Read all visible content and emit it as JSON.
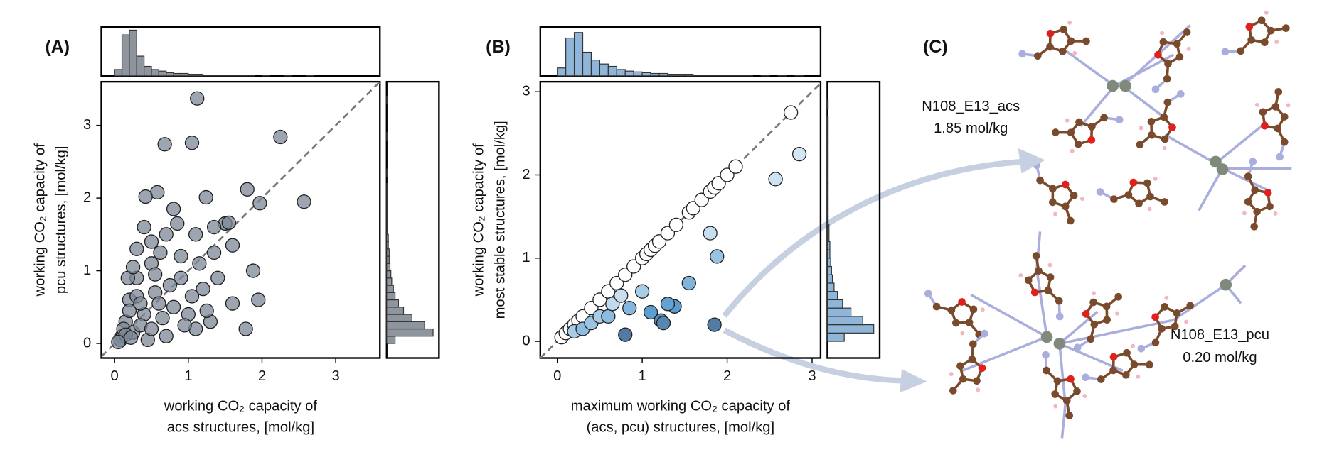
{
  "chart_data": [
    {
      "type": "scatter",
      "panel": "(A)",
      "xlabel": [
        "working CO₂ capacity of",
        "acs structures, [mol/kg]"
      ],
      "ylabel": [
        "working CO₂ capacity of",
        "pcu structures, [mol/kg]"
      ],
      "x": [
        1.12,
        2.25,
        0.68,
        1.05,
        2.57,
        1.8,
        1.97,
        1.24,
        0.58,
        0.42,
        0.8,
        1.5,
        1.55,
        1.35,
        1.6,
        1.88,
        1.78,
        1.3,
        1.05,
        1.2,
        0.9,
        0.7,
        0.5,
        0.3,
        0.3,
        0.2,
        0.15,
        0.1,
        0.08,
        0.12,
        0.25,
        0.4,
        0.55,
        0.65,
        0.8,
        1.0,
        1.1,
        0.7,
        0.45,
        0.35,
        0.2,
        0.18,
        0.5,
        0.9,
        1.15,
        1.4,
        1.6,
        0.6,
        0.95,
        1.25,
        0.3,
        0.5,
        0.15,
        0.22,
        0.75,
        0.85,
        0.4,
        0.62,
        1.35,
        1.1,
        1.95,
        0.25,
        0.55,
        0.05,
        0.35
      ],
      "y": [
        3.37,
        2.84,
        2.74,
        2.76,
        1.95,
        2.12,
        1.93,
        2.01,
        2.08,
        2.02,
        1.85,
        1.65,
        1.66,
        1.6,
        1.35,
        1.0,
        0.2,
        0.3,
        0.65,
        0.75,
        1.2,
        1.5,
        1.1,
        0.9,
        1.3,
        0.6,
        0.3,
        0.1,
        0.05,
        0.2,
        0.15,
        0.4,
        0.7,
        0.35,
        0.5,
        0.4,
        0.2,
        0.1,
        0.05,
        0.25,
        0.45,
        0.9,
        1.4,
        0.9,
        1.1,
        0.9,
        0.55,
        0.55,
        0.25,
        0.45,
        0.65,
        0.2,
        0.12,
        0.08,
        0.8,
        1.65,
        1.6,
        1.25,
        1.25,
        1.5,
        0.6,
        1.05,
        0.95,
        0.02,
        0.55
      ],
      "color": "#7c8896",
      "edgecolor": "#222222",
      "xlim": [
        -0.18,
        3.6
      ],
      "ylim": [
        -0.2,
        3.6
      ],
      "xticks": [
        0,
        1,
        2,
        3
      ],
      "yticks": [
        0,
        1,
        2,
        3
      ],
      "diagonal": true
    },
    {
      "type": "histogram",
      "orientation": "vertical",
      "color": "#8f959c",
      "bins": [
        0,
        0.1,
        0.2,
        0.3,
        0.4,
        0.5,
        0.6,
        0.7,
        0.8,
        0.9,
        1.0,
        1.1,
        1.2,
        1.3,
        1.4,
        1.5,
        1.6,
        1.7,
        1.8,
        1.9,
        2.0,
        2.1,
        2.2,
        2.3,
        2.4,
        2.5,
        2.6,
        2.7,
        2.8,
        2.9,
        3.0,
        3.1,
        3.2,
        3.3,
        3.4,
        3.5,
        3.6
      ],
      "counts": [
        8,
        52,
        58,
        25,
        12,
        8,
        6,
        4,
        3,
        3,
        2,
        2,
        1,
        1,
        1,
        1,
        1,
        1,
        1,
        0,
        1,
        0,
        0,
        1,
        0,
        0,
        1,
        0,
        0,
        0,
        0,
        0,
        0,
        0,
        0,
        0
      ],
      "xlim": [
        -0.18,
        3.6
      ],
      "ylim": [
        0,
        62
      ]
    },
    {
      "type": "histogram",
      "orientation": "horizontal",
      "color": "#8f959c",
      "bins": [
        0,
        0.1,
        0.2,
        0.3,
        0.4,
        0.5,
        0.6,
        0.7,
        0.8,
        0.9,
        1.0,
        1.1,
        1.2,
        1.3,
        1.4,
        1.5,
        1.6,
        1.7,
        1.8,
        1.9,
        2.0,
        2.1,
        2.2,
        2.3,
        2.4,
        2.5,
        2.6,
        2.7,
        2.8,
        2.9,
        3.0,
        3.1,
        3.2,
        3.3,
        3.4,
        3.5,
        3.6
      ],
      "counts": [
        10,
        55,
        45,
        30,
        20,
        14,
        10,
        8,
        6,
        5,
        4,
        3,
        3,
        2,
        2,
        1,
        1,
        1,
        1,
        1,
        1,
        1,
        0,
        1,
        0,
        0,
        0,
        0,
        1,
        0,
        0,
        0,
        0,
        1,
        0,
        0
      ],
      "xlim": [
        0,
        62
      ],
      "ylim": [
        -0.2,
        3.6
      ]
    },
    {
      "type": "scatter",
      "panel": "(B)",
      "xlabel": [
        "maximum working CO₂ capacity of",
        "(acs, pcu) structures, [mol/kg]"
      ],
      "ylabel": [
        "working CO₂ capacity of",
        "most stable structures, [mol/kg]"
      ],
      "x": [
        0.05,
        0.1,
        0.15,
        0.2,
        0.25,
        0.3,
        0.4,
        0.5,
        0.6,
        0.7,
        0.8,
        0.9,
        1.0,
        1.05,
        1.1,
        1.15,
        1.2,
        1.3,
        1.4,
        1.55,
        1.6,
        1.7,
        1.8,
        1.85,
        1.9,
        2.0,
        2.1,
        2.75,
        0.2,
        0.3,
        0.4,
        0.5,
        0.6,
        0.65,
        0.75,
        1.0,
        0.85,
        1.1,
        0.8,
        1.8,
        2.57,
        2.85,
        1.38,
        1.3,
        1.22,
        1.25,
        1.55,
        1.88,
        1.85
      ],
      "y": [
        0.05,
        0.1,
        0.15,
        0.2,
        0.25,
        0.3,
        0.4,
        0.5,
        0.6,
        0.7,
        0.8,
        0.9,
        1.0,
        1.05,
        1.1,
        1.15,
        1.2,
        1.3,
        1.4,
        1.55,
        1.6,
        1.7,
        1.8,
        1.85,
        1.9,
        2.0,
        2.1,
        2.75,
        0.12,
        0.15,
        0.22,
        0.3,
        0.3,
        0.45,
        0.55,
        0.6,
        0.4,
        0.35,
        0.08,
        1.3,
        1.95,
        2.25,
        0.42,
        0.45,
        0.25,
        0.22,
        0.7,
        1.02,
        0.2
      ],
      "colormap": [
        "#ffffff",
        "#bcd7ec",
        "#5fa0d2",
        "#4c6a8f"
      ],
      "edgecolor": "#222222",
      "xlim": [
        -0.2,
        3.1
      ],
      "ylim": [
        -0.2,
        3.12
      ],
      "xticks": [
        0,
        1,
        2,
        3
      ],
      "yticks": [
        0,
        1,
        2,
        3
      ],
      "diagonal": true
    },
    {
      "type": "histogram",
      "orientation": "vertical",
      "color": "#8fb5d8",
      "bins": [
        0,
        0.1,
        0.2,
        0.3,
        0.4,
        0.5,
        0.6,
        0.7,
        0.8,
        0.9,
        1.0,
        1.1,
        1.2,
        1.3,
        1.4,
        1.5,
        1.6,
        1.7,
        1.8,
        1.9,
        2.0,
        2.1,
        2.2,
        2.3,
        2.4,
        2.5,
        2.6,
        2.7,
        2.8,
        2.9,
        3.0,
        3.1
      ],
      "counts": [
        10,
        48,
        55,
        30,
        20,
        15,
        12,
        8,
        6,
        5,
        4,
        3,
        3,
        2,
        2,
        2,
        1,
        1,
        1,
        1,
        1,
        1,
        1,
        0,
        1,
        0,
        1,
        0,
        1,
        0,
        0
      ],
      "xlim": [
        -0.2,
        3.1
      ],
      "ylim": [
        0,
        62
      ]
    },
    {
      "type": "histogram",
      "orientation": "horizontal",
      "color": "#8fb5d8",
      "bins": [
        0,
        0.1,
        0.2,
        0.3,
        0.4,
        0.5,
        0.6,
        0.7,
        0.8,
        0.9,
        1.0,
        1.1,
        1.2,
        1.3,
        1.4,
        1.5,
        1.6,
        1.7,
        1.8,
        1.9,
        2.0,
        2.1,
        2.2,
        2.3,
        2.4,
        2.5,
        2.6,
        2.7,
        2.8,
        2.9,
        3.0,
        3.1
      ],
      "counts": [
        20,
        55,
        42,
        28,
        18,
        12,
        8,
        6,
        5,
        4,
        3,
        3,
        2,
        2,
        1,
        1,
        1,
        1,
        1,
        1,
        1,
        1,
        1,
        1,
        1,
        1,
        1,
        0,
        1,
        0,
        0
      ],
      "xlim": [
        0,
        62
      ],
      "ylim": [
        -0.2,
        3.12
      ]
    }
  ],
  "panel_c": {
    "label": "(C)",
    "structures": [
      {
        "name": "N108_E13_acs",
        "value": "1.85 mol/kg"
      },
      {
        "name": "N108_E13_pcu",
        "value": "0.20 mol/kg"
      }
    ]
  }
}
